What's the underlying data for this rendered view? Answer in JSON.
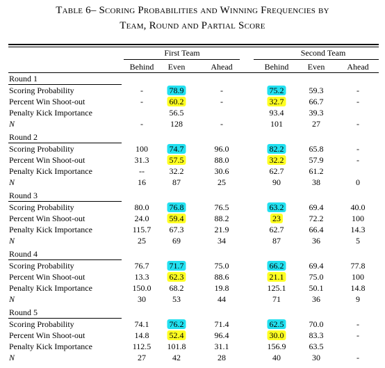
{
  "header": {
    "title_line1": "Table 6– Scoring Probabilities and Winning Frequencies by",
    "title_line2": "Team, Round and Partial Score"
  },
  "table": {
    "groups": [
      "First Team",
      "Second Team"
    ],
    "columns": [
      "Behind",
      "Even",
      "Ahead",
      "Behind",
      "Even",
      "Ahead"
    ],
    "rounds": [
      {
        "label": "Round 1",
        "rows": [
          {
            "label": "Scoring Probability",
            "cells": [
              "-",
              "78.9",
              "-",
              "75.2",
              "59.3",
              "-"
            ]
          },
          {
            "label": "Percent Win Shoot-out",
            "cells": [
              "-",
              "60.2",
              "-",
              "32.7",
              "66.7",
              "-"
            ]
          },
          {
            "label": "Penalty Kick Importance",
            "cells": [
              null,
              "56.5",
              null,
              "93.4",
              "39.3",
              null
            ]
          },
          {
            "label": "N",
            "cells": [
              "-",
              "128",
              "-",
              "101",
              "27",
              "-"
            ]
          }
        ]
      },
      {
        "label": "Round 2",
        "rows": [
          {
            "label": "Scoring Probability",
            "cells": [
              "100",
              "74.7",
              "96.0",
              "82.2",
              "65.8",
              "-"
            ]
          },
          {
            "label": "Percent Win Shoot-out",
            "cells": [
              "31.3",
              "57.5",
              "88.0",
              "32.2",
              "57.9",
              "-"
            ]
          },
          {
            "label": "Penalty Kick Importance",
            "cells": [
              "--",
              "32.2",
              "30.6",
              "62.7",
              "61.2",
              null
            ]
          },
          {
            "label": "N",
            "cells": [
              "16",
              "87",
              "25",
              "90",
              "38",
              "0"
            ]
          }
        ]
      },
      {
        "label": "Round 3",
        "rows": [
          {
            "label": "Scoring Probability",
            "cells": [
              "80.0",
              "76.8",
              "76.5",
              "63.2",
              "69.4",
              "40.0"
            ]
          },
          {
            "label": "Percent Win Shoot-out",
            "cells": [
              "24.0",
              "59.4",
              "88.2",
              "23",
              "72.2",
              "100"
            ]
          },
          {
            "label": "Penalty Kick Importance",
            "cells": [
              "115.7",
              "67.3",
              "21.9",
              "62.7",
              "66.4",
              "14.3"
            ]
          },
          {
            "label": "N",
            "cells": [
              "25",
              "69",
              "34",
              "87",
              "36",
              "5"
            ]
          }
        ]
      },
      {
        "label": "Round 4",
        "rows": [
          {
            "label": "Scoring Probability",
            "cells": [
              "76.7",
              "71.7",
              "75.0",
              "66.2",
              "69.4",
              "77.8"
            ]
          },
          {
            "label": "Percent Win Shoot-out",
            "cells": [
              "13.3",
              "62.3",
              "88.6",
              "21.1",
              "75.0",
              "100"
            ]
          },
          {
            "label": "Penalty Kick Importance",
            "cells": [
              "150.0",
              "68.2",
              "19.8",
              "125.1",
              "50.1",
              "14.8"
            ]
          },
          {
            "label": "N",
            "cells": [
              "30",
              "53",
              "44",
              "71",
              "36",
              "9"
            ]
          }
        ]
      },
      {
        "label": "Round 5",
        "rows": [
          {
            "label": "Scoring Probability",
            "cells": [
              "74.1",
              "76.2",
              "71.4",
              "62.5",
              "70.0",
              "-"
            ]
          },
          {
            "label": "Percent Win Shoot-out",
            "cells": [
              "14.8",
              "52.4",
              "96.4",
              "30.0",
              "83.3",
              "-"
            ]
          },
          {
            "label": "Penalty Kick Importance",
            "cells": [
              "112.5",
              "101.8",
              "31.1",
              "156.9",
              "63.5",
              null
            ]
          },
          {
            "label": "N",
            "cells": [
              "27",
              "42",
              "28",
              "40",
              "30",
              "-"
            ]
          }
        ]
      }
    ]
  }
}
